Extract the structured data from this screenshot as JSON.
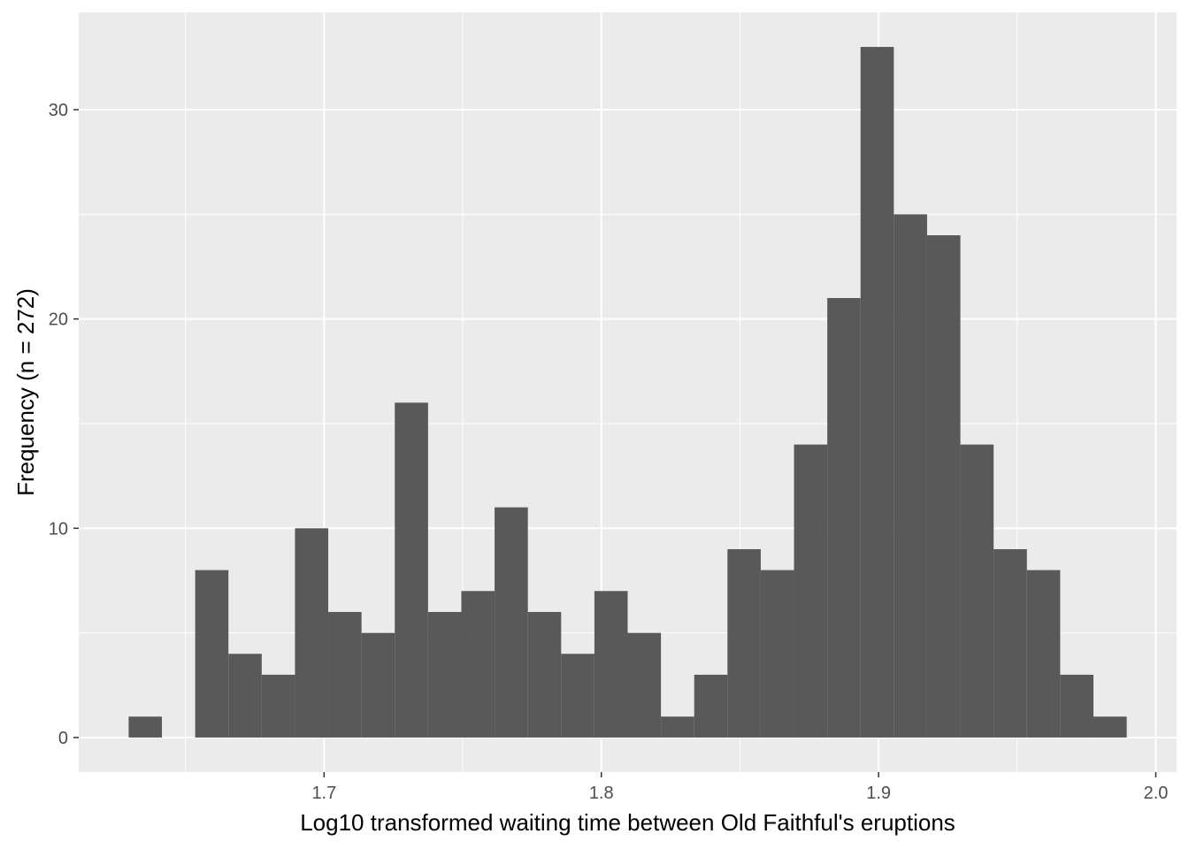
{
  "chart_data": {
    "type": "bar",
    "subtype": "histogram",
    "xlabel": "Log10 transformed waiting time between Old Faithful's eruptions",
    "ylabel": "Frequency (n = 272)",
    "xlim": [
      1.6115,
      2.0075
    ],
    "ylim": [
      -1.65,
      34.65
    ],
    "grid": true,
    "legend": "none",
    "x_ticks": [
      1.7,
      1.8,
      1.9,
      2.0
    ],
    "x_tick_labels": [
      "1.7",
      "1.8",
      "1.9",
      "2.0"
    ],
    "y_ticks": [
      0,
      10,
      20,
      30
    ],
    "y_tick_labels": [
      "0",
      "10",
      "20",
      "30"
    ],
    "bin_width": 0.012,
    "bins": [
      {
        "start": 1.6295,
        "end": 1.6415,
        "count": 1
      },
      {
        "start": 1.6415,
        "end": 1.6535,
        "count": 0
      },
      {
        "start": 1.6535,
        "end": 1.6655,
        "count": 8
      },
      {
        "start": 1.6655,
        "end": 1.6775,
        "count": 4
      },
      {
        "start": 1.6775,
        "end": 1.6895,
        "count": 3
      },
      {
        "start": 1.6895,
        "end": 1.7015,
        "count": 10
      },
      {
        "start": 1.7015,
        "end": 1.7135,
        "count": 6
      },
      {
        "start": 1.7135,
        "end": 1.7255,
        "count": 5
      },
      {
        "start": 1.7255,
        "end": 1.7375,
        "count": 16
      },
      {
        "start": 1.7375,
        "end": 1.7495,
        "count": 6
      },
      {
        "start": 1.7495,
        "end": 1.7615,
        "count": 7
      },
      {
        "start": 1.7615,
        "end": 1.7735,
        "count": 11
      },
      {
        "start": 1.7735,
        "end": 1.7855,
        "count": 6
      },
      {
        "start": 1.7855,
        "end": 1.7975,
        "count": 4
      },
      {
        "start": 1.7975,
        "end": 1.8095,
        "count": 7
      },
      {
        "start": 1.8095,
        "end": 1.8215,
        "count": 5
      },
      {
        "start": 1.8215,
        "end": 1.8335,
        "count": 1
      },
      {
        "start": 1.8335,
        "end": 1.8455,
        "count": 3
      },
      {
        "start": 1.8455,
        "end": 1.8575,
        "count": 9
      },
      {
        "start": 1.8575,
        "end": 1.8695,
        "count": 8
      },
      {
        "start": 1.8695,
        "end": 1.8815,
        "count": 14
      },
      {
        "start": 1.8815,
        "end": 1.8935,
        "count": 21
      },
      {
        "start": 1.8935,
        "end": 1.9055,
        "count": 33
      },
      {
        "start": 1.9055,
        "end": 1.9175,
        "count": 25
      },
      {
        "start": 1.9175,
        "end": 1.9295,
        "count": 24
      },
      {
        "start": 1.9295,
        "end": 1.9415,
        "count": 14
      },
      {
        "start": 1.9415,
        "end": 1.9535,
        "count": 9
      },
      {
        "start": 1.9535,
        "end": 1.9655,
        "count": 8
      },
      {
        "start": 1.9655,
        "end": 1.9775,
        "count": 3
      },
      {
        "start": 1.9775,
        "end": 1.9895,
        "count": 1
      }
    ],
    "colors": {
      "panel_background": "#ebebeb",
      "grid_major": "#ffffff",
      "bar_fill": "#595959",
      "tick_text": "#4d4d4d",
      "tick_mark": "#333333"
    }
  }
}
